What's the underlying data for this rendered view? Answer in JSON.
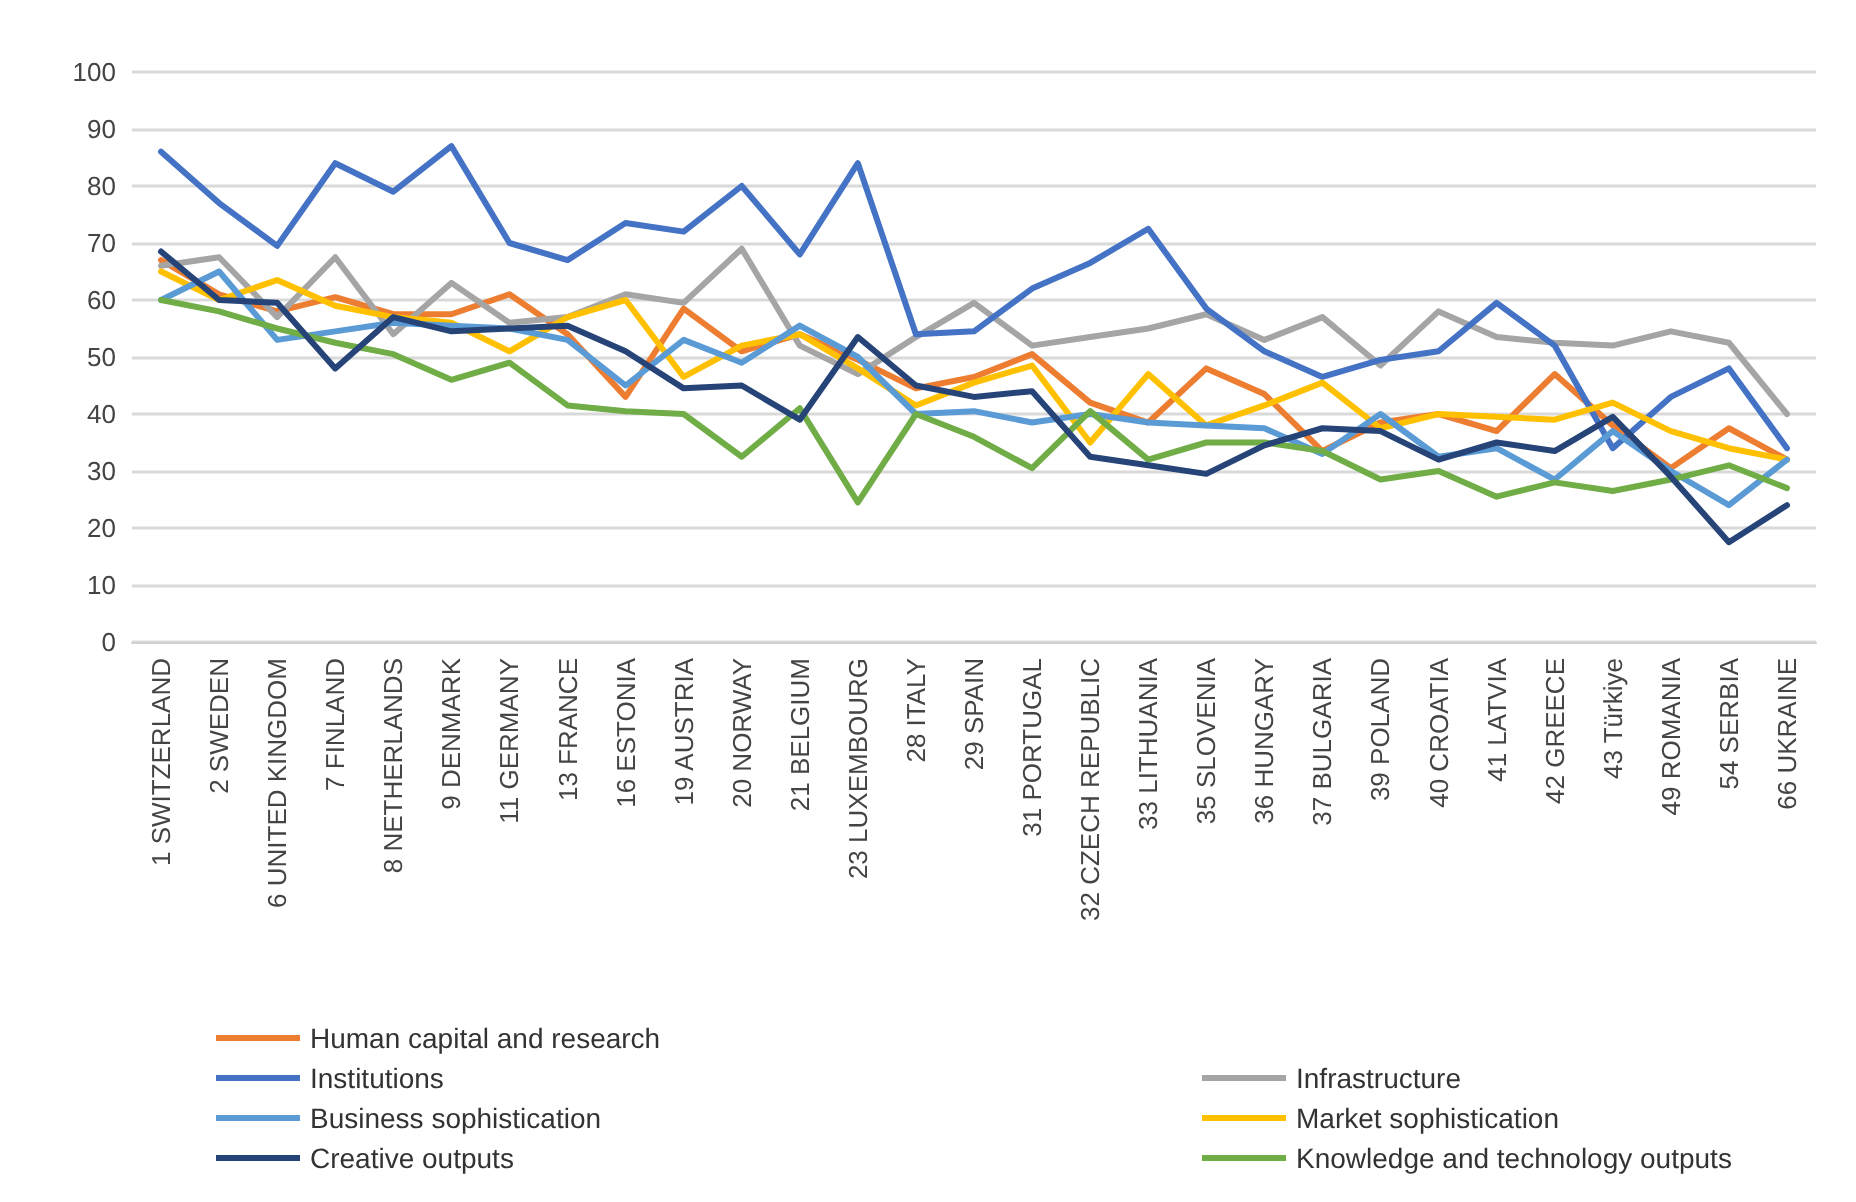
{
  "chart_data": {
    "type": "line",
    "categories": [
      "1 SWITZERLAND",
      "2 SWEDEN",
      "6 UNITED KINGDOM",
      "7 FINLAND",
      "8 NETHERLANDS",
      "9 DENMARK",
      "11 GERMANY",
      "13 FRANCE",
      "16 ESTONIA",
      "19 AUSTRIA",
      "20 NORWAY",
      "21 BELGIUM",
      "23 LUXEMBOURG",
      "28 ITALY",
      "29 SPAIN",
      "31 PORTUGAL",
      "32 CZECH REPUBLIC",
      "33 LITHUANIA",
      "35 SLOVENIA",
      "36 HUNGARY",
      "37 BULGARIA",
      "39 POLAND",
      "40 CROATIA",
      "41 LATVIA",
      "42 GREECE",
      "43 Türkiye",
      "49 ROMANIA",
      "54 SERBIA",
      "66 UKRAINE"
    ],
    "series": [
      {
        "name": "Human capital and research",
        "color": "#ed7d31",
        "values": [
          67,
          61,
          58,
          60.5,
          57.5,
          57.5,
          61,
          54,
          43,
          58.5,
          51,
          54,
          49.5,
          44.5,
          46.5,
          50.5,
          42,
          38.5,
          48,
          43.5,
          33.5,
          38.5,
          40,
          37,
          47,
          38,
          30.5,
          37.5,
          32
        ]
      },
      {
        "name": "Infrastructure",
        "color": "#a5a5a5",
        "values": [
          66,
          67.5,
          57,
          67.5,
          54,
          63,
          56,
          57,
          61,
          59.5,
          69,
          52,
          47,
          53.5,
          59.5,
          52,
          53.5,
          55,
          57.5,
          53,
          57,
          48.5,
          58,
          53.5,
          52.5,
          52,
          54.5,
          52.5,
          40
        ]
      },
      {
        "name": "Institutions",
        "color": "#4472c4",
        "values": [
          86,
          77,
          69.5,
          84,
          79,
          87,
          70,
          67,
          73.5,
          72,
          80,
          68,
          84,
          54,
          54.5,
          62,
          66.5,
          72.5,
          58.5,
          51,
          46.5,
          49.5,
          51,
          59.5,
          52,
          34,
          43,
          48,
          34
        ]
      },
      {
        "name": "Market sophistication",
        "color": "#ffc000",
        "values": [
          65,
          60,
          63.5,
          59,
          57,
          56,
          51,
          57,
          60,
          46.5,
          52,
          54,
          48,
          41.5,
          45.5,
          48.5,
          35,
          47,
          38,
          41.5,
          45.5,
          37.5,
          40,
          39.5,
          39,
          42,
          37,
          34,
          32
        ]
      },
      {
        "name": "Business sophistication",
        "color": "#5b9bd5",
        "values": [
          60,
          65,
          53,
          54.5,
          56,
          55.5,
          55,
          53,
          45,
          53,
          49,
          55.5,
          50,
          40,
          40.5,
          38.5,
          40,
          38.5,
          38,
          37.5,
          33,
          40,
          32.5,
          34,
          28.5,
          37,
          30,
          24,
          32
        ]
      },
      {
        "name": "Knowledge and technology outputs",
        "color": "#70ad47",
        "values": [
          60,
          58,
          55,
          52.5,
          50.5,
          46,
          49,
          41.5,
          40.5,
          40,
          32.5,
          41,
          24.5,
          40,
          36,
          30.5,
          40.5,
          32,
          35,
          35,
          33.5,
          28.5,
          30,
          25.5,
          28,
          26.5,
          28.5,
          31,
          27
        ]
      },
      {
        "name": "Creative outputs",
        "color": "#264478",
        "values": [
          68.5,
          60,
          59.5,
          48,
          57,
          54.5,
          55,
          55.5,
          51,
          44.5,
          45,
          39,
          53.5,
          45,
          43,
          44,
          32.5,
          31,
          29.5,
          34.5,
          37.5,
          37,
          32,
          35,
          33.5,
          39.5,
          29,
          17.5,
          24
        ]
      }
    ],
    "ylim": [
      0,
      100
    ],
    "yticks": [
      0,
      10,
      20,
      30,
      40,
      50,
      60,
      70,
      80,
      90,
      100
    ],
    "grid": "y",
    "legend": "bottom",
    "marker": "none",
    "line_style": "solid"
  }
}
